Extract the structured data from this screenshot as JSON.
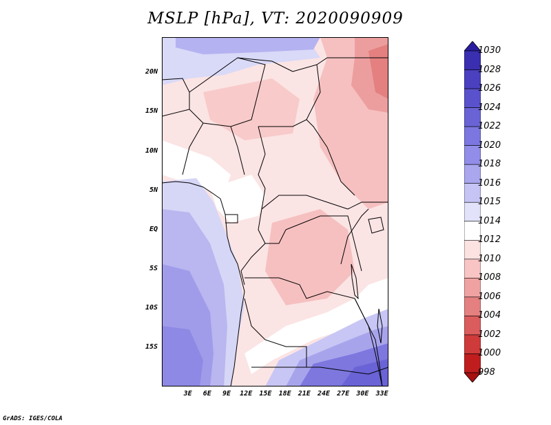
{
  "title": "MSLP [hPa], VT: 2020090909",
  "footer": "GrADS: IGES/COLA",
  "map": {
    "lon_range": [
      -1,
      34
    ],
    "lat_range": [
      -20,
      24.5
    ],
    "lat_ticks": [
      "20N",
      "15N",
      "10N",
      "5N",
      "EQ",
      "5S",
      "10S",
      "15S"
    ],
    "lat_values": [
      20,
      15,
      10,
      5,
      0,
      -5,
      -10,
      -15
    ],
    "lon_ticks": [
      "3E",
      "6E",
      "9E",
      "12E",
      "15E",
      "18E",
      "21E",
      "24E",
      "27E",
      "30E",
      "33E"
    ],
    "lon_values": [
      3,
      6,
      9,
      12,
      15,
      18,
      21,
      24,
      27,
      30,
      33
    ]
  },
  "colorbar": {
    "labels": [
      "1030",
      "1028",
      "1026",
      "1024",
      "1022",
      "1020",
      "1018",
      "1016",
      "1015",
      "1014",
      "1012",
      "1010",
      "1008",
      "1006",
      "1004",
      "1002",
      "1000",
      "998"
    ],
    "colors": [
      "#2a1da0",
      "#3a2fb0",
      "#4a40c0",
      "#5a52cc",
      "#6a63d6",
      "#7c76e0",
      "#928de8",
      "#aaa7ee",
      "#c5c4f4",
      "#e2e2fa",
      "#ffffff",
      "#fde2e2",
      "#f8c4c4",
      "#f0a2a2",
      "#e58080",
      "#db5c5c",
      "#cf3a3a",
      "#c01e1e",
      "#a81010"
    ]
  }
}
